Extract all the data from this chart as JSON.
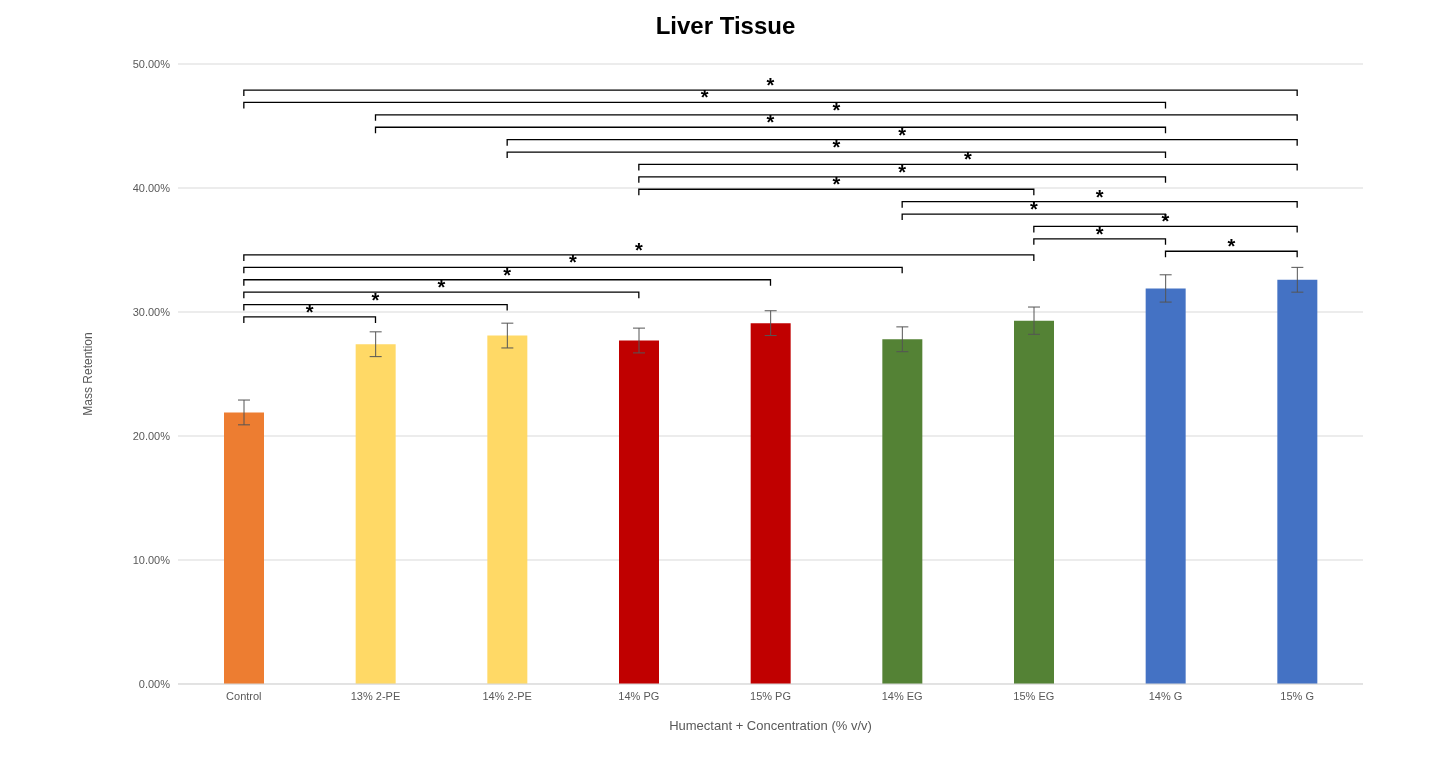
{
  "chart_data": {
    "type": "bar",
    "title": "Liver Tissue",
    "xlabel": "Humectant + Concentration (% v/v)",
    "ylabel": "Mass Retention",
    "categories": [
      "Control",
      "13% 2-PE",
      "14% 2-PE",
      "14% PG",
      "15% PG",
      "14% EG",
      "15% EG",
      "14% G",
      "15% G"
    ],
    "values": [
      21.9,
      27.4,
      28.1,
      27.7,
      29.1,
      27.8,
      29.3,
      31.9,
      32.6
    ],
    "errors": [
      1.0,
      1.0,
      1.0,
      1.0,
      1.0,
      1.0,
      1.1,
      1.1,
      1.0
    ],
    "colors": [
      "#ed7d31",
      "#ffd966",
      "#ffd966",
      "#c00000",
      "#c00000",
      "#548235",
      "#548235",
      "#4472c4",
      "#4472c4"
    ],
    "ylim": [
      0,
      50
    ],
    "yticks": [
      {
        "value": 0,
        "label": "0.00%"
      },
      {
        "value": 10,
        "label": "10.00%"
      },
      {
        "value": 20,
        "label": "20.00%"
      },
      {
        "value": 30,
        "label": "30.00%"
      },
      {
        "value": 40,
        "label": "40.00%"
      },
      {
        "value": 50,
        "label": "50.00%"
      }
    ],
    "grid": "y",
    "annotations": [
      "*",
      "*",
      "*",
      "*",
      "*",
      "*",
      "*",
      "*",
      "*",
      "*",
      "*",
      "*",
      "*",
      "*",
      "*",
      "*",
      "*",
      "*",
      "*",
      "*"
    ]
  }
}
